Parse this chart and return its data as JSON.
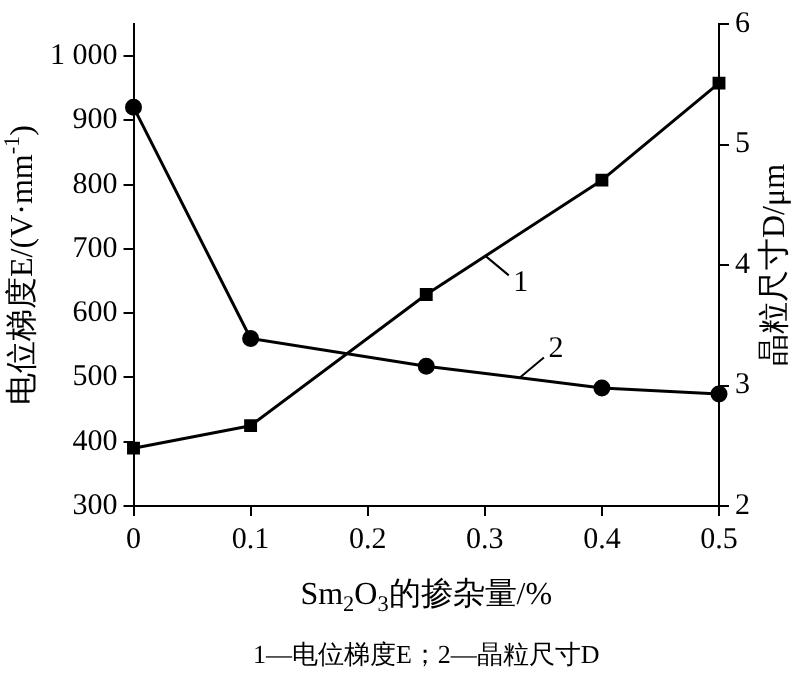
{
  "chart_data": {
    "type": "line",
    "xlabel": "Sm$_{2}$O$_{3}$的掺杂量/%",
    "ylabel": "电位梯度E/(V·mm$^{-1}$)",
    "y2label": "晶粒尺寸D/μm",
    "x": [
      0,
      0.1,
      0.25,
      0.4,
      0.5
    ],
    "xlim": [
      0,
      0.5
    ],
    "xticks": [
      0,
      0.1,
      0.2,
      0.3,
      0.4,
      0.5
    ],
    "ylim": [
      300,
      1050
    ],
    "yticks": [
      300,
      400,
      500,
      600,
      700,
      800,
      900,
      {
        "value": 1000,
        "label": "1 000"
      }
    ],
    "y2lim": [
      2,
      6
    ],
    "y2ticks": [
      2,
      3,
      4,
      5,
      6
    ],
    "series": [
      {
        "color": "#000000",
        "marker": "square",
        "values": [
          390,
          425,
          629,
          807,
          958
        ]
      },
      {
        "color": "#000000",
        "marker": "circle",
        "axis": "y2",
        "values": [
          5.31,
          3.39,
          3.16,
          2.98,
          2.93
        ]
      }
    ],
    "grid": false,
    "legend": false,
    "line_style": "solid",
    "annotations": [
      {
        "text": "1",
        "x": 0.3,
        "y": 690
      },
      {
        "text": "2",
        "x": 0.33,
        "y": 500
      },
      "1—电位梯度E；2—晶粒尺寸D"
    ]
  }
}
